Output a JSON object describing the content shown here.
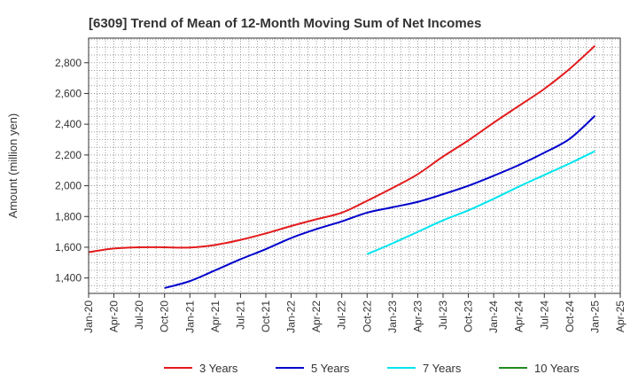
{
  "chart_data": {
    "type": "line",
    "title": "[6309]  Trend of Mean of 12-Month Moving Sum of Net Incomes",
    "xlabel": "",
    "ylabel": "Amount (million yen)",
    "x_ticks": [
      "Jan-20",
      "Apr-20",
      "Jul-20",
      "Oct-20",
      "Jan-21",
      "Apr-21",
      "Jul-21",
      "Oct-21",
      "Jan-22",
      "Apr-22",
      "Jul-22",
      "Oct-22",
      "Jan-23",
      "Apr-23",
      "Jul-23",
      "Oct-23",
      "Jan-24",
      "Apr-24",
      "Jul-24",
      "Oct-24",
      "Jan-25",
      "Apr-25"
    ],
    "y_ticks": [
      1400,
      1600,
      1800,
      2000,
      2200,
      2400,
      2600,
      2800
    ],
    "ylim": [
      1300,
      2960
    ],
    "x_range": [
      "Jan-20",
      "Apr-25"
    ],
    "grid": true,
    "legend_position": "bottom",
    "series": [
      {
        "name": "3 Years",
        "color": "#e31a1c",
        "points": [
          [
            "Jan-20",
            1568
          ],
          [
            "Apr-20",
            1592
          ],
          [
            "Jul-20",
            1600
          ],
          [
            "Oct-20",
            1600
          ],
          [
            "Jan-21",
            1598
          ],
          [
            "Apr-21",
            1615
          ],
          [
            "Jul-21",
            1648
          ],
          [
            "Oct-21",
            1690
          ],
          [
            "Jan-22",
            1738
          ],
          [
            "Apr-22",
            1782
          ],
          [
            "Jul-22",
            1825
          ],
          [
            "Oct-22",
            1902
          ],
          [
            "Jan-23",
            1985
          ],
          [
            "Apr-23",
            2075
          ],
          [
            "Jul-23",
            2190
          ],
          [
            "Oct-23",
            2295
          ],
          [
            "Jan-24",
            2410
          ],
          [
            "Apr-24",
            2520
          ],
          [
            "Jul-24",
            2630
          ],
          [
            "Oct-24",
            2760
          ],
          [
            "Jan-25",
            2910
          ]
        ]
      },
      {
        "name": "5 Years",
        "color": "#0000cc",
        "points": [
          [
            "Oct-20",
            1335
          ],
          [
            "Jan-21",
            1380
          ],
          [
            "Apr-21",
            1450
          ],
          [
            "Jul-21",
            1522
          ],
          [
            "Oct-21",
            1588
          ],
          [
            "Jan-22",
            1660
          ],
          [
            "Apr-22",
            1718
          ],
          [
            "Jul-22",
            1768
          ],
          [
            "Oct-22",
            1825
          ],
          [
            "Jan-23",
            1860
          ],
          [
            "Apr-23",
            1895
          ],
          [
            "Jul-23",
            1945
          ],
          [
            "Oct-23",
            2000
          ],
          [
            "Jan-24",
            2065
          ],
          [
            "Apr-24",
            2135
          ],
          [
            "Jul-24",
            2215
          ],
          [
            "Oct-24",
            2305
          ],
          [
            "Jan-25",
            2455
          ]
        ]
      },
      {
        "name": "7 Years",
        "color": "#00e5ee",
        "points": [
          [
            "Oct-22",
            1555
          ],
          [
            "Jan-23",
            1625
          ],
          [
            "Apr-23",
            1700
          ],
          [
            "Jul-23",
            1775
          ],
          [
            "Oct-23",
            1840
          ],
          [
            "Jan-24",
            1915
          ],
          [
            "Apr-24",
            1995
          ],
          [
            "Jul-24",
            2070
          ],
          [
            "Oct-24",
            2145
          ],
          [
            "Jan-25",
            2225
          ]
        ]
      },
      {
        "name": "10 Years",
        "color": "#228b22",
        "points": []
      }
    ]
  }
}
